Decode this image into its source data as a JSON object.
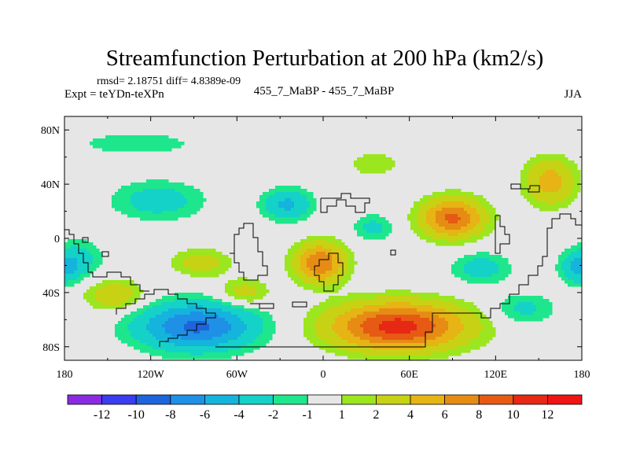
{
  "chart_data": {
    "type": "heatmap",
    "title": "Streamfunction Perturbation at 200 hPa (km2/s)",
    "stats_line": "rmsd= 2.18751 diff= 4.8389e-09",
    "experiment_label": "Expt = teYDn-teXPn",
    "subtitle": "455_7_MaBP - 455_7_MaBP",
    "season": "JJA",
    "x_range": [
      -180,
      180
    ],
    "y_range": [
      -90,
      90
    ],
    "x_ticks": [
      {
        "value": -180,
        "label": "180"
      },
      {
        "value": -120,
        "label": "120W"
      },
      {
        "value": -60,
        "label": "60W"
      },
      {
        "value": 0,
        "label": "0"
      },
      {
        "value": 60,
        "label": "60E"
      },
      {
        "value": 120,
        "label": "120E"
      },
      {
        "value": 180,
        "label": "180"
      }
    ],
    "y_ticks": [
      {
        "value": 80,
        "label": "80N"
      },
      {
        "value": 40,
        "label": "40N"
      },
      {
        "value": 0,
        "label": "0"
      },
      {
        "value": -40,
        "label": "40S"
      },
      {
        "value": -80,
        "label": "80S"
      }
    ],
    "colorbar_labels": [
      "-12",
      "-10",
      "-8",
      "-6",
      "-4",
      "-2",
      "-1",
      "1",
      "2",
      "4",
      "6",
      "8",
      "10",
      "12"
    ],
    "colorbar_colors": [
      "#8a2be2",
      "#3c3cf0",
      "#1e64dc",
      "#1e90e6",
      "#14b4dc",
      "#14d2c8",
      "#1ee68c",
      "#e6e6e6",
      "#9be61e",
      "#c8d214",
      "#e6b414",
      "#e68c14",
      "#e65a14",
      "#e62814",
      "#f01414"
    ],
    "levels": [
      -12,
      -10,
      -8,
      -6,
      -4,
      -2,
      -1,
      1,
      2,
      4,
      6,
      8,
      10,
      12
    ],
    "features": [
      {
        "name": "anomaly-south-pacific-low",
        "lon": -88,
        "lat": -65,
        "amplitude": -8.5,
        "sx": 28,
        "sy": 12
      },
      {
        "name": "anomaly-south-indian-high",
        "lon": 52,
        "lat": -65,
        "amplitude": 11,
        "sx": 32,
        "sy": 12
      },
      {
        "name": "anomaly-asia-high",
        "lon": 90,
        "lat": 15,
        "amplitude": 8.5,
        "sx": 15,
        "sy": 10
      },
      {
        "name": "anomaly-tropical-atlantic-high",
        "lon": -2,
        "lat": -18,
        "amplitude": 8,
        "sx": 12,
        "sy": 10
      },
      {
        "name": "anomaly-north-america-low",
        "lon": -25,
        "lat": 25,
        "amplitude": -4.5,
        "sx": 12,
        "sy": 8
      },
      {
        "name": "anomaly-north-pacific-low",
        "lon": -115,
        "lat": 28,
        "amplitude": -3,
        "sx": 22,
        "sy": 10
      },
      {
        "name": "anomaly-east-pacific-low",
        "lon": -170,
        "lat": -15,
        "amplitude": -2.5,
        "sx": 12,
        "sy": 10
      },
      {
        "name": "anomaly-south-pacific-high",
        "lon": -145,
        "lat": -42,
        "amplitude": 3.5,
        "sx": 14,
        "sy": 8
      },
      {
        "name": "anomaly-south-america-high",
        "lon": -55,
        "lat": -40,
        "amplitude": 3,
        "sx": 12,
        "sy": 7
      },
      {
        "name": "anomaly-tropical-pacific-high",
        "lon": -85,
        "lat": -18,
        "amplitude": 3,
        "sx": 14,
        "sy": 7
      },
      {
        "name": "anomaly-western-pacific-high",
        "lon": 158,
        "lat": 42,
        "amplitude": 5,
        "sx": 12,
        "sy": 12
      },
      {
        "name": "anomaly-indian-ocean-low",
        "lon": 110,
        "lat": -22,
        "amplitude": -3,
        "sx": 14,
        "sy": 8
      },
      {
        "name": "anomaly-southern-ocean-low",
        "lon": 140,
        "lat": -52,
        "amplitude": -2.5,
        "sx": 15,
        "sy": 8
      },
      {
        "name": "anomaly-west-pacific-low",
        "lon": 178,
        "lat": -22,
        "amplitude": -4,
        "sx": 9,
        "sy": 8
      },
      {
        "name": "anomaly-north-atlantic-low",
        "lon": 35,
        "lat": 8,
        "amplitude": -2.5,
        "sx": 10,
        "sy": 7
      },
      {
        "name": "anomaly-arctic-low",
        "lon": -130,
        "lat": 70,
        "amplitude": -1.8,
        "sx": 30,
        "sy": 6
      },
      {
        "name": "anomaly-north-africa-high",
        "lon": 35,
        "lat": 55,
        "amplitude": 2,
        "sx": 12,
        "sy": 6
      }
    ]
  }
}
